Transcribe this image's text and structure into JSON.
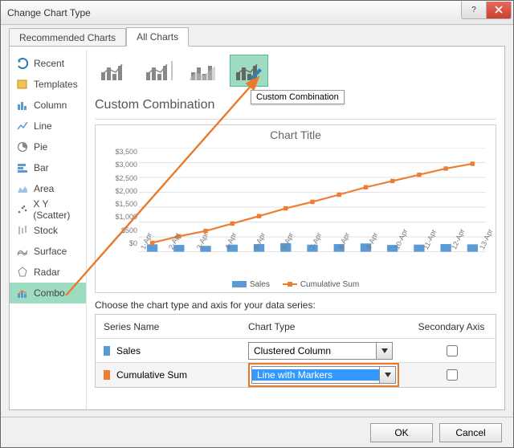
{
  "window_title": "Change Chart Type",
  "tabs": {
    "recommended": "Recommended Charts",
    "all": "All Charts"
  },
  "sidebar_items": [
    {
      "key": "recent",
      "label": "Recent"
    },
    {
      "key": "templates",
      "label": "Templates"
    },
    {
      "key": "column",
      "label": "Column"
    },
    {
      "key": "line",
      "label": "Line"
    },
    {
      "key": "pie",
      "label": "Pie"
    },
    {
      "key": "bar",
      "label": "Bar"
    },
    {
      "key": "area",
      "label": "Area"
    },
    {
      "key": "scatter",
      "label": "X Y (Scatter)"
    },
    {
      "key": "stock",
      "label": "Stock"
    },
    {
      "key": "surface",
      "label": "Surface"
    },
    {
      "key": "radar",
      "label": "Radar"
    },
    {
      "key": "combo",
      "label": "Combo"
    }
  ],
  "selected_sidebar": "combo",
  "thumb_tooltip": "Custom Combination",
  "section_title": "Custom Combination",
  "chart": {
    "title": "Chart Title",
    "categories": [
      "1-Apr",
      "2-Apr",
      "3-Apr",
      "4-Apr",
      "5-Apr",
      "6-Apr",
      "7-Apr",
      "8-Apr",
      "9-Apr",
      "10-Apr",
      "11-Apr",
      "12-Apr",
      "13-Apr"
    ],
    "yticks": [
      "$0",
      "$500",
      "$1,000",
      "$1,500",
      "$2,000",
      "$2,500",
      "$3,000",
      "$3,500"
    ],
    "ymax": 3500,
    "bar_values": [
      250,
      230,
      200,
      240,
      260,
      290,
      240,
      260,
      280,
      230,
      240,
      260,
      250
    ],
    "line_values": [
      300,
      520,
      700,
      950,
      1200,
      1460,
      1680,
      1920,
      2170,
      2380,
      2590,
      2800,
      2960
    ],
    "bar_color": "#5b9bd5",
    "line_color": "#ed7d31",
    "grid_color": "#e3e3e3",
    "legend": {
      "a": "Sales",
      "b": "Cumulative Sum"
    }
  },
  "series_prompt": "Choose the chart type and axis for your data series:",
  "series_headers": {
    "name": "Series Name",
    "type": "Chart Type",
    "axis": "Secondary Axis"
  },
  "series": [
    {
      "name": "Sales",
      "color": "#5b9bd5",
      "chart_type": "Clustered Column",
      "secondary": false,
      "highlighted": false
    },
    {
      "name": "Cumulative Sum",
      "color": "#ed7d31",
      "chart_type": "Line with Markers",
      "secondary": false,
      "highlighted": true
    }
  ],
  "buttons": {
    "ok": "OK",
    "cancel": "Cancel"
  },
  "highlight_color": "#e87a2c",
  "select_highlight": "#9edcc1"
}
